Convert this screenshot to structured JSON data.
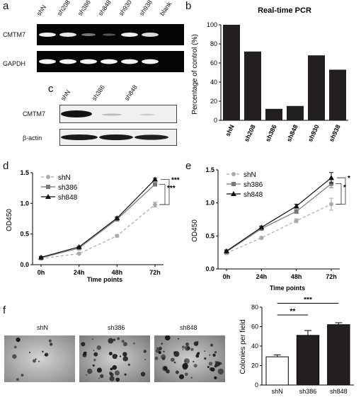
{
  "panels": {
    "a": "a",
    "b": "b",
    "c": "c",
    "d": "d",
    "e": "e",
    "f": "f"
  },
  "panel_a": {
    "lanes": [
      "shN",
      "sh208",
      "sh386",
      "sh848",
      "sh930",
      "sh938",
      "blank"
    ],
    "row_labels": [
      "CMTM7",
      "GAPDH"
    ]
  },
  "panel_c": {
    "lanes": [
      "shN",
      "sh386",
      "sh848"
    ],
    "row_labels": [
      "CMTM7",
      "β-actin"
    ]
  },
  "panel_f": {
    "image_labels": [
      "shN",
      "sh386",
      "sh848"
    ]
  },
  "chart_data": [
    {
      "id": "b",
      "type": "bar",
      "title": "Real-time PCR",
      "ylabel": "Percentage of control (%)",
      "xlabel": "",
      "categories": [
        "shN",
        "sh208",
        "sh386",
        "sh848",
        "sh930",
        "sh938"
      ],
      "values": [
        100,
        72,
        12,
        15,
        68,
        53
      ],
      "ylim": [
        0,
        100
      ],
      "yticks": [
        "0",
        "20",
        "40",
        "60",
        "80",
        "100"
      ],
      "bar_color": "#231f20"
    },
    {
      "id": "d",
      "type": "line",
      "title": "",
      "xlabel": "Time points",
      "ylabel": "OD450",
      "categories": [
        "0h",
        "24h",
        "48h",
        "72h"
      ],
      "ylim": [
        0,
        1.5
      ],
      "yticks": [
        "0.0",
        "0.5",
        "1.0",
        "1.5"
      ],
      "series": [
        {
          "name": "shN",
          "values": [
            0.1,
            0.18,
            0.47,
            0.98
          ],
          "errors": [
            0.01,
            0.01,
            0.02,
            0.04
          ],
          "color": "#aaaaaa",
          "marker": "circle",
          "dashed": true
        },
        {
          "name": "sh386",
          "values": [
            0.11,
            0.27,
            0.74,
            1.31
          ],
          "errors": [
            0.01,
            0.01,
            0.02,
            0.03
          ],
          "color": "#777777",
          "marker": "square",
          "dashed": false
        },
        {
          "name": "sh848",
          "values": [
            0.12,
            0.29,
            0.76,
            1.39
          ],
          "errors": [
            0.01,
            0.01,
            0.02,
            0.02
          ],
          "color": "#111111",
          "marker": "triangle",
          "dashed": false
        }
      ],
      "annotations": [
        "***",
        "***"
      ]
    },
    {
      "id": "e",
      "type": "line",
      "title": "",
      "xlabel": "Time points",
      "ylabel": "OD450",
      "categories": [
        "0h",
        "24h",
        "48h",
        "72h"
      ],
      "ylim": [
        0,
        1.5
      ],
      "yticks": [
        "0.0",
        "0.5",
        "1.0",
        "1.5"
      ],
      "series": [
        {
          "name": "shN",
          "values": [
            0.24,
            0.47,
            0.73,
            0.98
          ],
          "errors": [
            0.02,
            0.02,
            0.03,
            0.09
          ],
          "color": "#aaaaaa",
          "marker": "circle",
          "dashed": true
        },
        {
          "name": "sh386",
          "values": [
            0.26,
            0.61,
            0.87,
            1.29
          ],
          "errors": [
            0.02,
            0.02,
            0.03,
            0.06
          ],
          "color": "#777777",
          "marker": "square",
          "dashed": false
        },
        {
          "name": "sh848",
          "values": [
            0.27,
            0.63,
            0.95,
            1.38
          ],
          "errors": [
            0.02,
            0.02,
            0.03,
            0.08
          ],
          "color": "#111111",
          "marker": "triangle",
          "dashed": false
        }
      ],
      "annotations": [
        "*",
        "*"
      ]
    },
    {
      "id": "f",
      "type": "bar",
      "title": "",
      "xlabel": "",
      "ylabel": "Colonies per field",
      "categories": [
        "shN",
        "sh386",
        "sh848"
      ],
      "values": [
        29,
        51,
        62
      ],
      "errors": [
        2,
        5,
        2
      ],
      "ylim": [
        0,
        80
      ],
      "yticks": [
        "0",
        "20",
        "40",
        "60",
        "80"
      ],
      "fills": [
        "#ffffff",
        "#231f20",
        "#231f20"
      ],
      "annotations": [
        "**",
        "***"
      ]
    }
  ]
}
